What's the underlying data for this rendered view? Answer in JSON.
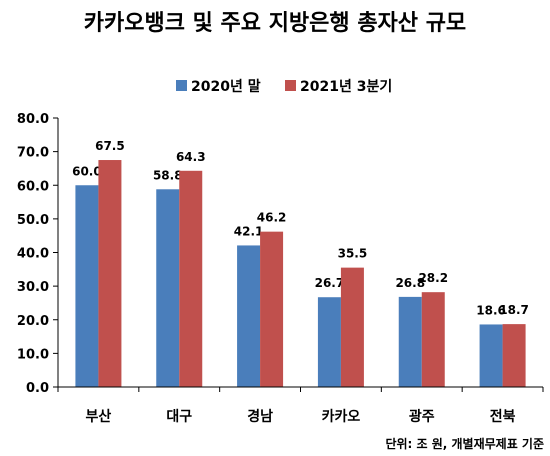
{
  "chart_data": {
    "type": "bar",
    "title": "카카오뱅크 및 주요 지방은행 총자산 규모",
    "categories": [
      "부산",
      "대구",
      "경남",
      "카카오",
      "광주",
      "전북"
    ],
    "series": [
      {
        "name": "2020년 말",
        "color": "#4a7ebb",
        "values": [
          60.0,
          58.8,
          42.1,
          26.7,
          26.8,
          18.6
        ]
      },
      {
        "name": "2021년 3분기",
        "color": "#c0504d",
        "values": [
          67.5,
          64.3,
          46.2,
          35.5,
          28.2,
          18.7
        ]
      }
    ],
    "ylim": [
      0,
      80
    ],
    "yticks": [
      "0.0",
      "10.0",
      "20.0",
      "30.0",
      "40.0",
      "50.0",
      "60.0",
      "70.0",
      "80.0"
    ],
    "xlabel": "",
    "ylabel": "",
    "legend_position": "top-center",
    "grid": false,
    "note": "단위: 조 원, 개별재무제표 기준"
  }
}
